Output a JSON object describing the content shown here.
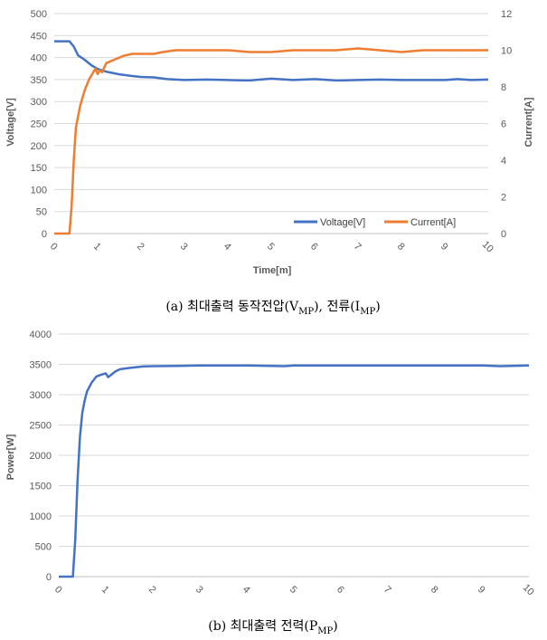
{
  "chart_data": [
    {
      "type": "line",
      "caption": {
        "prefix": "(a) 최대출력 동작전압(V",
        "sub1": "MP",
        "mid": "), 전류(I",
        "sub2": "MP",
        "suffix": ")"
      },
      "xlabel": "Time[m]",
      "ylabel": "Voltage[V]",
      "y2label": "Current[A]",
      "xlim": [
        0,
        10
      ],
      "ylim": [
        0,
        500
      ],
      "y2lim": [
        0,
        12
      ],
      "xticks": [
        0,
        1,
        2,
        3,
        4,
        5,
        6,
        7,
        8,
        9,
        10
      ],
      "yticks": [
        0,
        50,
        100,
        150,
        200,
        250,
        300,
        350,
        400,
        450,
        500
      ],
      "y2ticks": [
        0,
        2,
        4,
        6,
        8,
        10,
        12
      ],
      "legend_position": "bottom-right",
      "series": [
        {
          "name": "Voltage[V]",
          "axis": "left",
          "color": "#4472C4",
          "x": [
            0,
            0.35,
            0.45,
            0.55,
            0.7,
            0.85,
            1.0,
            1.2,
            1.5,
            1.8,
            2.0,
            2.3,
            2.6,
            2.8,
            3.0,
            3.5,
            4.0,
            4.5,
            5.0,
            5.5,
            6.0,
            6.5,
            7.0,
            7.5,
            8.0,
            8.5,
            9.0,
            9.3,
            9.6,
            10.0
          ],
          "values": [
            437,
            437,
            425,
            405,
            395,
            383,
            374,
            368,
            362,
            358,
            356,
            355,
            351,
            350,
            349,
            350,
            349,
            348,
            352,
            349,
            351,
            348,
            349,
            350,
            349,
            349,
            349,
            351,
            349,
            350
          ]
        },
        {
          "name": "Current[A]",
          "axis": "right",
          "color": "#ED7D31",
          "x": [
            0,
            0.25,
            0.35,
            0.4,
            0.45,
            0.5,
            0.6,
            0.7,
            0.8,
            0.9,
            0.95,
            1.0,
            1.05,
            1.1,
            1.2,
            1.4,
            1.6,
            1.8,
            2.0,
            2.3,
            2.5,
            2.8,
            3.0,
            3.5,
            4.0,
            4.5,
            5.0,
            5.5,
            6.0,
            6.5,
            7.0,
            7.5,
            8.0,
            8.5,
            9.0,
            9.5,
            10.0
          ],
          "values": [
            0,
            0,
            0,
            1.5,
            4.0,
            5.8,
            7.0,
            7.8,
            8.4,
            8.8,
            9.0,
            8.7,
            8.9,
            8.8,
            9.3,
            9.5,
            9.7,
            9.8,
            9.8,
            9.8,
            9.9,
            10.0,
            10.0,
            10.0,
            10.0,
            9.9,
            9.9,
            10.0,
            10.0,
            10.0,
            10.1,
            10.0,
            9.9,
            10.0,
            10.0,
            10.0,
            10.0
          ]
        }
      ]
    },
    {
      "type": "line",
      "caption": {
        "prefix": "(b) 최대출력 전력(P",
        "sub1": "MP",
        "suffix": ")"
      },
      "xlabel": "",
      "ylabel": "Power[W]",
      "xlim": [
        0,
        10
      ],
      "ylim": [
        0,
        4000
      ],
      "xticks": [
        0,
        1,
        2,
        3,
        4,
        5,
        6,
        7,
        8,
        9,
        10
      ],
      "yticks": [
        0,
        500,
        1000,
        1500,
        2000,
        2500,
        3000,
        3500,
        4000
      ],
      "series": [
        {
          "name": "",
          "color": "#4472C4",
          "x": [
            0,
            0.25,
            0.3,
            0.35,
            0.4,
            0.45,
            0.5,
            0.55,
            0.6,
            0.7,
            0.8,
            0.9,
            1.0,
            1.05,
            1.1,
            1.2,
            1.3,
            1.5,
            1.8,
            2.0,
            2.5,
            3.0,
            4.0,
            4.8,
            5.0,
            6.0,
            7.0,
            8.0,
            9.0,
            9.4,
            10.0
          ],
          "values": [
            0,
            0,
            0,
            600,
            1600,
            2300,
            2700,
            2900,
            3050,
            3200,
            3300,
            3330,
            3350,
            3290,
            3320,
            3380,
            3420,
            3440,
            3465,
            3470,
            3475,
            3480,
            3480,
            3470,
            3480,
            3480,
            3480,
            3480,
            3480,
            3470,
            3480
          ]
        }
      ]
    }
  ]
}
